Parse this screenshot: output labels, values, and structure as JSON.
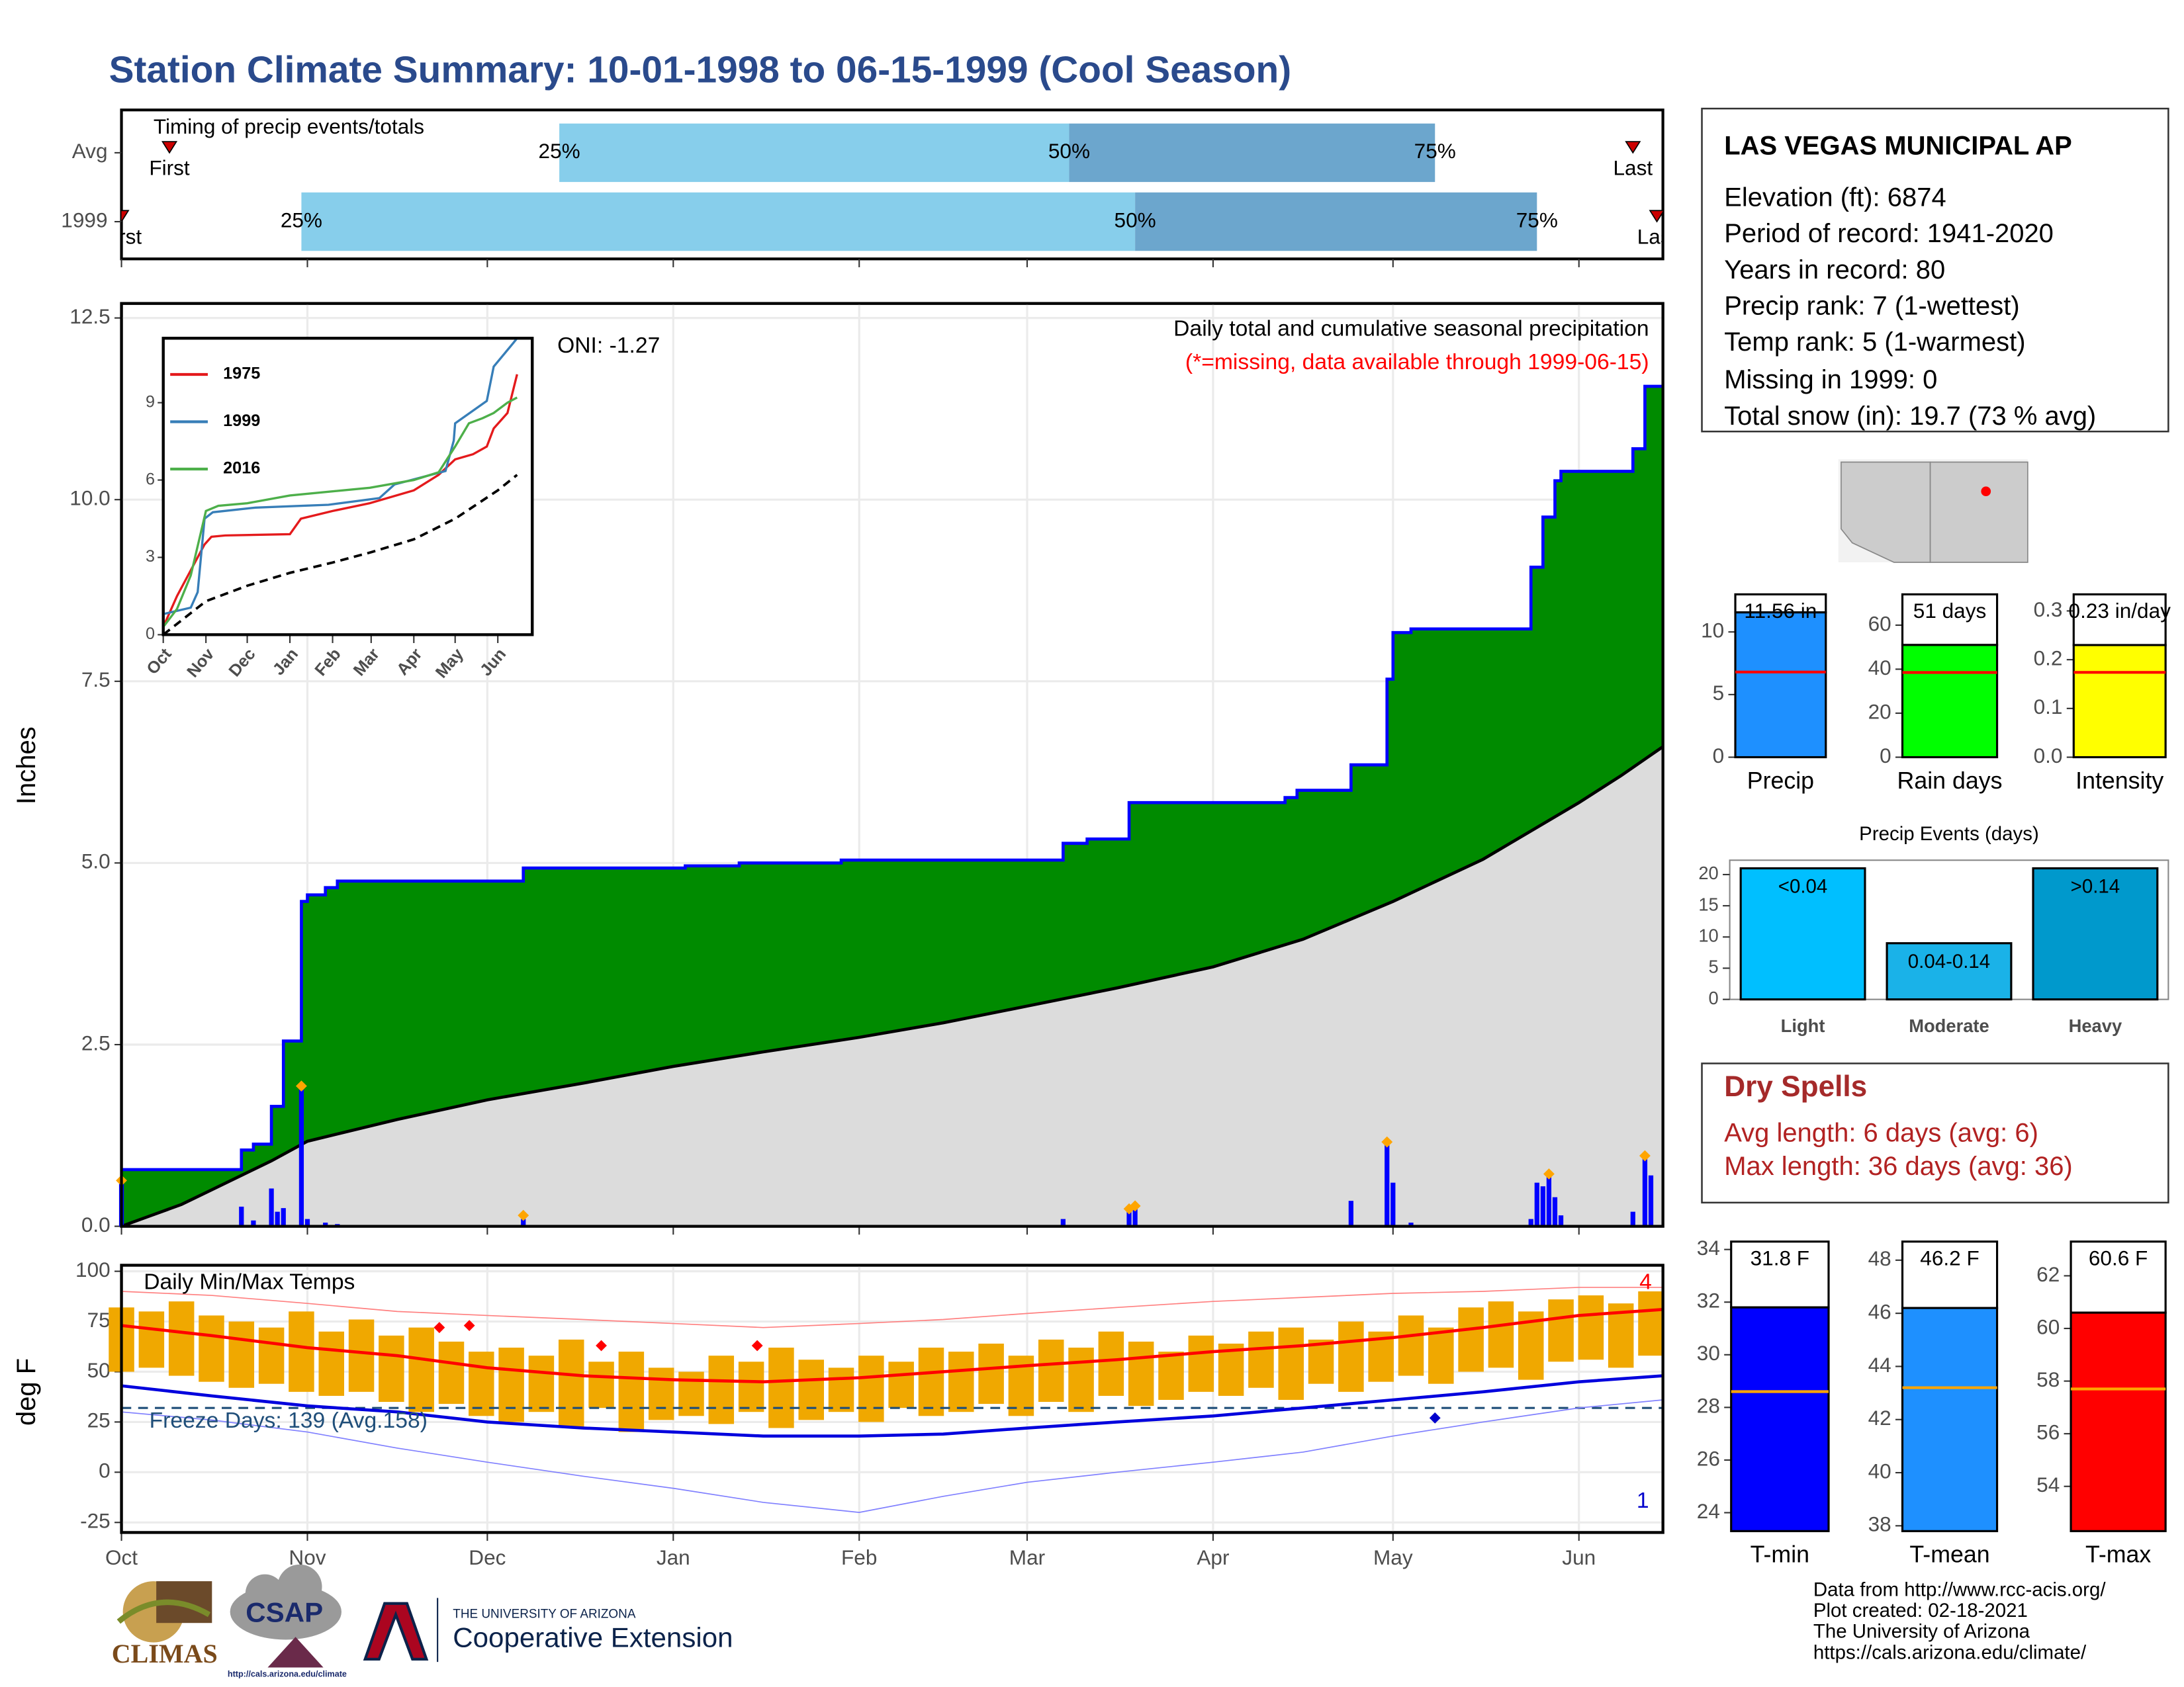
{
  "title": "Station Climate Summary: 10-01-1998 to 06-15-1999 (Cool Season)",
  "chart_data": [
    {
      "type": "timing",
      "title": "Timing of precip events/totals",
      "categories": [
        "Avg",
        "1999"
      ],
      "first": [
        8,
        0
      ],
      "q25": [
        73,
        30
      ],
      "q50": [
        158,
        169
      ],
      "q75": [
        219,
        236
      ],
      "last": [
        252,
        256
      ],
      "first_label": "First",
      "last_label": "Last",
      "q25_label": "25%",
      "q50_label": "50%",
      "q75_label": "75%",
      "colors": [
        "#87ceeb",
        "#6ca6cd"
      ],
      "marker_color": "#cc0000",
      "xlim": [
        0,
        257
      ],
      "xticks": [
        0,
        31,
        61,
        92,
        123,
        151,
        182,
        212,
        243
      ]
    },
    {
      "type": "area",
      "title": "Daily total and cumulative seasonal precipitation",
      "subtitle": "(*=missing, data available through 1999-06-15)",
      "annotation": "ONI: -1.27",
      "y_label": "Inches",
      "xlim": [
        0,
        257
      ],
      "xticks": [
        0,
        31,
        61,
        92,
        123,
        151,
        182,
        212,
        243
      ],
      "ylim": [
        0,
        12.7
      ],
      "yticks": [
        {
          "value": 0,
          "label": "0.0"
        },
        2.5,
        {
          "value": 5,
          "label": "5.0"
        },
        7.5,
        {
          "value": 10,
          "label": "10.0"
        },
        12.5
      ],
      "grid": true,
      "series": [
        {
          "type": "step",
          "color": "#008b00",
          "line_color": "#0000ff",
          "x": [
            0,
            20,
            22,
            25,
            27,
            30,
            31,
            34,
            36,
            67,
            94,
            103,
            120,
            157,
            161,
            168,
            194,
            196,
            205,
            211,
            212,
            215,
            235,
            237,
            239,
            240,
            252,
            254
          ],
          "values": [
            0.78,
            1.05,
            1.13,
            1.65,
            2.55,
            4.47,
            4.56,
            4.66,
            4.75,
            4.93,
            4.96,
            5.0,
            5.04,
            5.27,
            5.33,
            5.83,
            5.9,
            6.0,
            6.35,
            7.53,
            8.17,
            8.22,
            9.07,
            9.76,
            10.26,
            10.39,
            10.7,
            11.56
          ]
        },
        {
          "type": "area",
          "color": "#dcdcdc",
          "line_color": "#000000",
          "x": [
            0,
            5,
            10,
            15,
            20,
            25,
            31,
            46,
            61,
            77,
            92,
            107,
            123,
            137,
            151,
            166,
            182,
            197,
            212,
            227,
            243,
            250,
            257
          ],
          "values": [
            0,
            0.15,
            0.3,
            0.5,
            0.7,
            0.9,
            1.17,
            1.47,
            1.74,
            1.97,
            2.2,
            2.4,
            2.6,
            2.8,
            3.03,
            3.28,
            3.57,
            3.95,
            4.47,
            5.05,
            5.83,
            6.2,
            6.6
          ]
        },
        {
          "type": "bar",
          "color": "#0000ff",
          "x": [
            0,
            20,
            22,
            25,
            26,
            27,
            30,
            31,
            34,
            36,
            67,
            157,
            168,
            169,
            205,
            211,
            212,
            215,
            235,
            236,
            237,
            238,
            239,
            240,
            252,
            254,
            255
          ],
          "values": [
            0.6,
            0.27,
            0.08,
            0.52,
            0.2,
            0.25,
            1.88,
            0.1,
            0.05,
            0.03,
            0.1,
            0.1,
            0.2,
            0.25,
            0.35,
            1.13,
            0.6,
            0.05,
            0.1,
            0.6,
            0.55,
            0.68,
            0.4,
            0.15,
            0.2,
            0.95,
            0.7
          ]
        },
        {
          "type": "point",
          "color": "#ffa500",
          "x": [
            0,
            30,
            67,
            168,
            169,
            211,
            238,
            254
          ],
          "values": [
            0.63,
            1.93,
            0.15,
            0.24,
            0.28,
            1.16,
            0.72,
            0.97
          ]
        }
      ]
    },
    {
      "type": "line",
      "xlim": [
        0,
        268
      ],
      "xticks": [
        {
          "value": 0,
          "label": "Oct"
        },
        {
          "value": 31,
          "label": "Nov"
        },
        {
          "value": 61,
          "label": "Dec"
        },
        {
          "value": 92,
          "label": "Jan"
        },
        {
          "value": 123,
          "label": "Feb"
        },
        {
          "value": 151,
          "label": "Mar"
        },
        {
          "value": 182,
          "label": "Apr"
        },
        {
          "value": 212,
          "label": "May"
        },
        {
          "value": 243,
          "label": "Jun"
        }
      ],
      "ylim": [
        0,
        11.5
      ],
      "yticks": [
        0,
        3,
        6,
        9
      ],
      "series": [
        {
          "name": "1975",
          "color": "#e41a1c",
          "x": [
            0,
            10,
            20,
            30,
            35,
            45,
            92,
            100,
            123,
            150,
            182,
            200,
            212,
            225,
            235,
            240,
            250,
            257
          ],
          "values": [
            0.3,
            1.5,
            2.5,
            3.5,
            3.8,
            3.85,
            3.9,
            4.5,
            4.8,
            5.1,
            5.6,
            6.2,
            6.8,
            7.0,
            7.3,
            8.0,
            8.6,
            10.1
          ]
        },
        {
          "name": "1999",
          "color": "#377eb8",
          "x": [
            0,
            20,
            25,
            30,
            36,
            67,
            120,
            157,
            168,
            205,
            211,
            212,
            235,
            240,
            254,
            257
          ],
          "values": [
            0.8,
            1.05,
            1.65,
            4.5,
            4.75,
            4.93,
            5.04,
            5.3,
            5.83,
            6.35,
            7.53,
            8.2,
            9.07,
            10.4,
            11.3,
            11.5
          ]
        },
        {
          "name": "2016",
          "color": "#4daf4a",
          "x": [
            0,
            10,
            20,
            31,
            40,
            61,
            92,
            150,
            182,
            200,
            212,
            222,
            232,
            240,
            250,
            257
          ],
          "values": [
            0.3,
            1.0,
            2.3,
            4.8,
            5.0,
            5.1,
            5.4,
            5.7,
            6.0,
            6.3,
            7.3,
            8.2,
            8.4,
            8.6,
            9.0,
            9.2
          ]
        },
        {
          "color": "#000000",
          "dash": true,
          "x": [
            0,
            31,
            61,
            92,
            123,
            151,
            182,
            212,
            243,
            257
          ],
          "values": [
            0,
            1.3,
            1.9,
            2.4,
            2.8,
            3.2,
            3.7,
            4.5,
            5.6,
            6.2
          ]
        }
      ]
    },
    {
      "type": "range",
      "title": "Daily Min/Max Temps",
      "annotation": "Freeze Days: 139 (Avg.158)",
      "y_label": "deg F",
      "xlim": [
        0,
        257
      ],
      "xticks": [
        {
          "value": 0,
          "label": "Oct"
        },
        {
          "value": 31,
          "label": "Nov"
        },
        {
          "value": 61,
          "label": "Dec"
        },
        {
          "value": 92,
          "label": "Jan"
        },
        {
          "value": 123,
          "label": "Feb"
        },
        {
          "value": 151,
          "label": "Mar"
        },
        {
          "value": 182,
          "label": "Apr"
        },
        {
          "value": 212,
          "label": "May"
        },
        {
          "value": 243,
          "label": "Jun"
        }
      ],
      "ylim": [
        -30,
        103
      ],
      "yticks": [
        -25,
        0,
        25,
        50,
        75,
        100
      ],
      "grid": true,
      "freeze": 32,
      "freeze_color": "#1f4e79",
      "bars": {
        "color": "#f0a800",
        "x": [
          0,
          5,
          10,
          15,
          20,
          25,
          30,
          35,
          40,
          45,
          50,
          55,
          60,
          65,
          70,
          75,
          80,
          85,
          90,
          95,
          100,
          105,
          110,
          115,
          120,
          125,
          130,
          135,
          140,
          145,
          150,
          155,
          160,
          165,
          170,
          175,
          180,
          185,
          190,
          195,
          200,
          205,
          210,
          215,
          220,
          225,
          230,
          235,
          240,
          245,
          250,
          255
        ],
        "high": [
          82,
          80,
          85,
          78,
          75,
          72,
          80,
          70,
          76,
          68,
          72,
          65,
          60,
          62,
          58,
          66,
          55,
          60,
          52,
          50,
          58,
          55,
          62,
          56,
          52,
          58,
          55,
          62,
          60,
          64,
          58,
          66,
          62,
          70,
          65,
          60,
          68,
          64,
          70,
          72,
          66,
          75,
          70,
          78,
          72,
          82,
          85,
          80,
          86,
          88,
          84,
          90
        ],
        "low": [
          50,
          52,
          48,
          45,
          42,
          44,
          40,
          38,
          40,
          35,
          30,
          34,
          28,
          25,
          30,
          22,
          32,
          20,
          26,
          28,
          24,
          30,
          22,
          26,
          30,
          25,
          32,
          28,
          30,
          34,
          28,
          35,
          30,
          38,
          33,
          36,
          40,
          38,
          42,
          36,
          44,
          40,
          45,
          48,
          44,
          50,
          52,
          46,
          55,
          56,
          52,
          58
        ]
      },
      "series": [
        {
          "color": "#ff0000",
          "width": 2.2,
          "x": [
            0,
            15,
            31,
            46,
            61,
            77,
            92,
            107,
            123,
            137,
            151,
            166,
            182,
            197,
            212,
            227,
            243,
            257
          ],
          "values": [
            73,
            68,
            62,
            58,
            52,
            48,
            46,
            45,
            47,
            50,
            53,
            56,
            60,
            63,
            67,
            72,
            78,
            81
          ]
        },
        {
          "color": "#0000dd",
          "width": 2.2,
          "x": [
            0,
            15,
            31,
            46,
            61,
            77,
            92,
            107,
            123,
            137,
            151,
            166,
            182,
            197,
            212,
            227,
            243,
            257
          ],
          "values": [
            43,
            38,
            33,
            30,
            25,
            22,
            20,
            18,
            18,
            19,
            22,
            25,
            28,
            32,
            36,
            40,
            45,
            48
          ]
        },
        {
          "color": "#ff8080",
          "width": 0.8,
          "x": [
            0,
            15,
            31,
            46,
            61,
            77,
            92,
            107,
            123,
            137,
            151,
            166,
            182,
            197,
            212,
            227,
            243,
            257
          ],
          "values": [
            90,
            88,
            84,
            80,
            78,
            76,
            74,
            72,
            74,
            76,
            79,
            82,
            85,
            87,
            89,
            90,
            92,
            92
          ]
        },
        {
          "color": "#8080ff",
          "width": 0.8,
          "x": [
            0,
            15,
            31,
            46,
            61,
            77,
            92,
            107,
            123,
            137,
            151,
            166,
            182,
            197,
            212,
            227,
            243,
            257
          ],
          "values": [
            30,
            26,
            20,
            12,
            5,
            -2,
            -8,
            -15,
            -20,
            -12,
            -5,
            0,
            5,
            10,
            18,
            25,
            32,
            36
          ]
        }
      ],
      "points": [
        {
          "color": "#ff0000",
          "x": [
            53,
            58,
            80,
            106
          ],
          "values": [
            72,
            73,
            63,
            63
          ]
        },
        {
          "color": "#0000cc",
          "x": [
            219
          ],
          "values": [
            27
          ]
        }
      ],
      "record_high_count": 4,
      "record_low_count": 1
    },
    {
      "type": "bar",
      "categories": [
        "Precip"
      ],
      "values": [
        11.56
      ],
      "value_labels": [
        "11.56 in"
      ],
      "avg": [
        6.8
      ],
      "avg_color": "#ff0000",
      "color": "#1e90ff",
      "ylim": [
        0,
        13
      ],
      "yticks": [
        0,
        5,
        10
      ]
    },
    {
      "type": "bar",
      "categories": [
        "Rain days"
      ],
      "values": [
        51
      ],
      "value_labels": [
        "51 days"
      ],
      "avg": [
        38.5
      ],
      "avg_color": "#ff0000",
      "color": "#00ff00",
      "ylim": [
        0,
        74
      ],
      "yticks": [
        0,
        20,
        40,
        60
      ]
    },
    {
      "type": "bar",
      "categories": [
        "Intensity"
      ],
      "values": [
        0.23
      ],
      "value_labels": [
        "0.23 in/day"
      ],
      "avg": [
        0.174
      ],
      "avg_color": "#ff0000",
      "color": "#ffff00",
      "ylim": [
        0,
        0.334
      ],
      "yticks": [
        {
          "value": 0,
          "label": "0.0"
        },
        0.1,
        0.2,
        0.3
      ]
    },
    {
      "type": "bar",
      "title": "Precip Events (days)",
      "categories": [
        "Light",
        "Moderate",
        "Heavy"
      ],
      "values": [
        21,
        9,
        21
      ],
      "bin_labels": [
        "<0.04",
        "0.04-0.14",
        ">0.14"
      ],
      "colors": [
        "#00bfff",
        "#1ab2e8",
        "#0099cc"
      ],
      "ylim": [
        0,
        22.3
      ],
      "yticks": [
        0,
        5,
        10,
        15,
        20
      ]
    },
    {
      "type": "bar",
      "categories": [
        "T-min"
      ],
      "values": [
        31.8
      ],
      "value_labels": [
        "31.8 F"
      ],
      "avg": [
        28.6
      ],
      "avg_color": "#ffa500",
      "color": "#0000ff",
      "ylim": [
        23.3,
        34.3
      ],
      "yticks": [
        24,
        26,
        28,
        30,
        32,
        34
      ]
    },
    {
      "type": "bar",
      "categories": [
        "T-mean"
      ],
      "values": [
        46.2
      ],
      "value_labels": [
        "46.2 F"
      ],
      "avg": [
        43.2
      ],
      "avg_color": "#ffa500",
      "color": "#1e90ff",
      "ylim": [
        37.8,
        48.7
      ],
      "yticks": [
        38,
        40,
        42,
        44,
        46,
        48
      ]
    },
    {
      "type": "bar",
      "categories": [
        "T-max"
      ],
      "values": [
        60.6
      ],
      "value_labels": [
        "60.6 F"
      ],
      "avg": [
        57.7
      ],
      "avg_color": "#ffa500",
      "color": "#ff0000",
      "ylim": [
        52.3,
        63.3
      ],
      "yticks": [
        54,
        56,
        58,
        60,
        62
      ]
    }
  ],
  "station": {
    "name": "LAS VEGAS MUNICIPAL AP",
    "lines": [
      "Elevation (ft): 6874",
      "Period of record: 1941-2020",
      "Years in record: 80",
      "Precip rank: 7 (1-wettest)",
      "Temp rank: 5 (1-warmest)",
      "Missing in 1999: 0",
      "Total snow (in): 19.7 (73 % avg)"
    ]
  },
  "dry_spells": {
    "title": "Dry Spells",
    "lines": [
      "Avg length: 6 days (avg: 6)",
      "Max length: 36 days (avg: 36)"
    ]
  },
  "footer": [
    "Data from http://www.rcc-acis.org/",
    "Plot created: 02-18-2021",
    "The University of Arizona",
    "https://cals.arizona.edu/climate/"
  ],
  "logos": {
    "climas": "CLIMAS",
    "csap": "CSAP",
    "csap_url": "http://cals.arizona.edu/climate",
    "ua": "THE UNIVERSITY OF ARIZONA",
    "extension": "Cooperative Extension"
  }
}
